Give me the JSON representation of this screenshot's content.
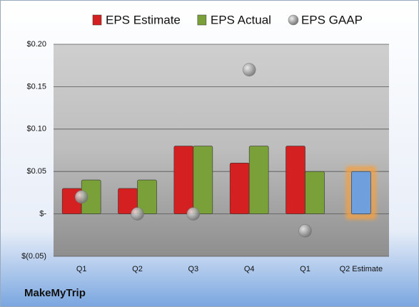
{
  "chart_data": {
    "type": "bar",
    "categories": [
      "Q1",
      "Q2",
      "Q3",
      "Q4",
      "Q1",
      "Q2 Estimate"
    ],
    "series": [
      {
        "name": "EPS Estimate",
        "color": "#d42020",
        "values": [
          0.03,
          0.03,
          0.08,
          0.06,
          0.08,
          null
        ]
      },
      {
        "name": "EPS Actual",
        "color": "#7aa03a",
        "values": [
          0.04,
          0.04,
          0.08,
          0.08,
          0.05,
          null
        ]
      },
      {
        "name": "EPS GAAP",
        "color": "#9a9a9a",
        "type": "scatter",
        "values": [
          0.02,
          0.0,
          0.0,
          0.17,
          -0.02,
          null
        ]
      },
      {
        "color": "#6f9fdc",
        "values": [
          null,
          null,
          null,
          null,
          null,
          0.05
        ]
      }
    ],
    "ylim": [
      -0.05,
      0.2
    ],
    "yticks": [
      {
        "value": -0.05,
        "label": "$(0.05)"
      },
      {
        "value": 0,
        "label": "$-"
      },
      {
        "value": 0.05,
        "label": "$0.05"
      },
      {
        "value": 0.1,
        "label": "$0.10"
      },
      {
        "value": 0.15,
        "label": "$0.15"
      },
      {
        "value": 0.2,
        "label": "$0.20"
      }
    ],
    "grid": true,
    "footer": "MakeMyTrip"
  }
}
